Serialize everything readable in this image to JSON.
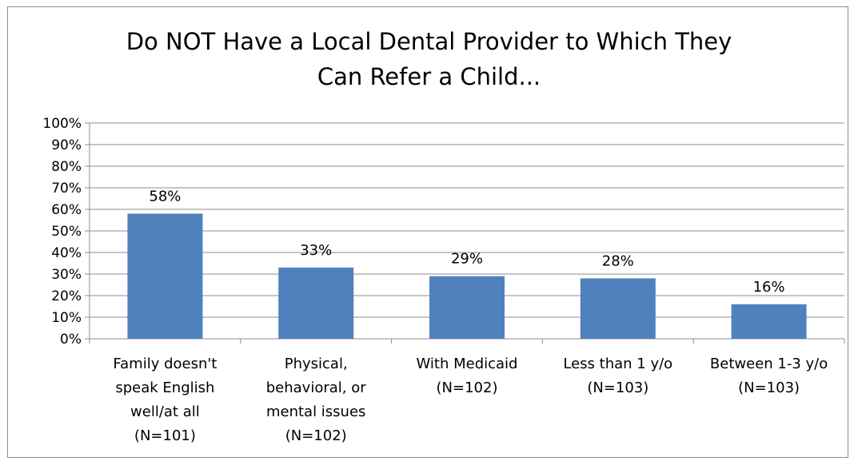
{
  "chart_data": {
    "type": "bar",
    "title_lines": [
      "Do NOT Have a Local Dental Provider to Which They",
      "Can Refer a Child..."
    ],
    "categories": [
      [
        "Family doesn't",
        "speak English",
        "well/at all",
        "(N=101)"
      ],
      [
        "Physical,",
        "behavioral, or",
        "mental issues",
        "(N=102)"
      ],
      [
        "With Medicaid",
        "(N=102)"
      ],
      [
        "Less than 1 y/o",
        "(N=103)"
      ],
      [
        "Between 1-3 y/o",
        "(N=103)"
      ]
    ],
    "values": [
      58,
      33,
      29,
      28,
      16
    ],
    "value_labels": [
      "58%",
      "33%",
      "29%",
      "28%",
      "16%"
    ],
    "y_ticks": [
      "0%",
      "10%",
      "20%",
      "30%",
      "40%",
      "50%",
      "60%",
      "70%",
      "80%",
      "90%",
      "100%"
    ],
    "ylim": [
      0,
      100
    ],
    "grid": true,
    "bar_color": "#4f81bd",
    "grid_color": "#8c8c8c"
  }
}
